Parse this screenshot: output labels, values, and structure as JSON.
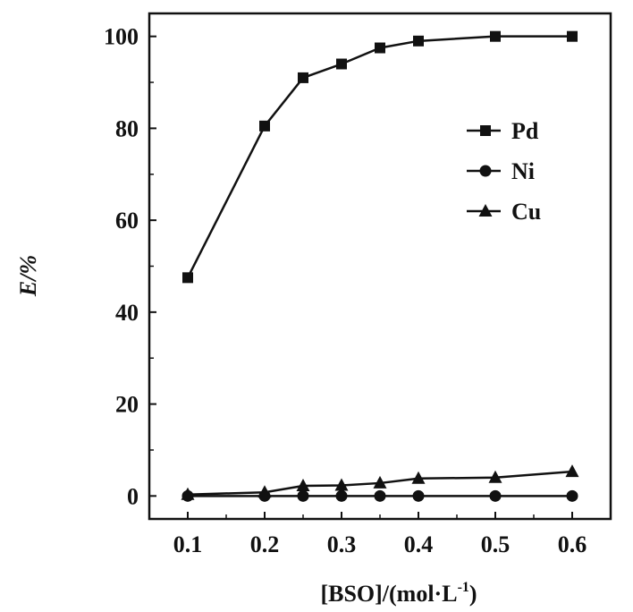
{
  "chart_data": {
    "type": "line",
    "title": "",
    "xlabel": "[BSO]/(mol·L",
    "xlabel_sup": "-1",
    "xlabel_tail": ")",
    "ylabel": "E/%",
    "xlim": [
      0.05,
      0.65
    ],
    "ylim": [
      -5,
      105
    ],
    "xticks": [
      0.1,
      0.2,
      0.3,
      0.4,
      0.5,
      0.6
    ],
    "xtick_labels": [
      "0.1",
      "0.2",
      "0.3",
      "0.4",
      "0.5",
      "0.6"
    ],
    "yticks": [
      0,
      20,
      40,
      60,
      80,
      100
    ],
    "ytick_labels": [
      "0",
      "20",
      "40",
      "60",
      "80",
      "100"
    ],
    "grid": false,
    "legend_position": "top-right",
    "series": [
      {
        "name": "Pd",
        "marker": "square",
        "color": "#111111",
        "x": [
          0.1,
          0.2,
          0.25,
          0.3,
          0.35,
          0.4,
          0.5,
          0.6
        ],
        "y": [
          47.5,
          80.5,
          91,
          94,
          97.5,
          99,
          100,
          100
        ]
      },
      {
        "name": "Ni",
        "marker": "circle",
        "color": "#111111",
        "x": [
          0.1,
          0.2,
          0.25,
          0.3,
          0.35,
          0.4,
          0.5,
          0.6
        ],
        "y": [
          0,
          0,
          0,
          0,
          0,
          0,
          0,
          0
        ]
      },
      {
        "name": "Cu",
        "marker": "triangle",
        "color": "#111111",
        "x": [
          0.1,
          0.2,
          0.25,
          0.3,
          0.35,
          0.4,
          0.5,
          0.6
        ],
        "y": [
          0.3,
          0.8,
          2.2,
          2.3,
          2.8,
          3.8,
          4.0,
          5.3
        ]
      }
    ]
  }
}
